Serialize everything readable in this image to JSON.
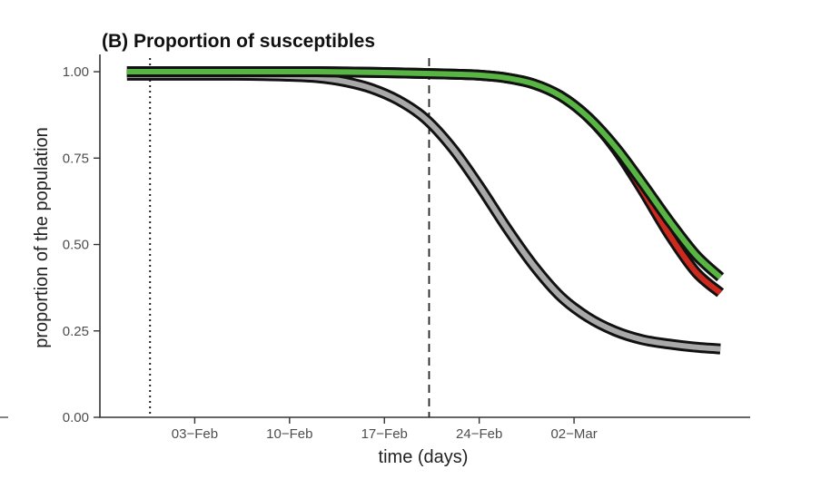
{
  "chart_data": {
    "type": "line",
    "title": "(B) Proportion of susceptibles",
    "xlabel": "time (days)",
    "ylabel": "proportion of the population",
    "x_day_range": [
      -4,
      44
    ],
    "xlim": [
      -4,
      44
    ],
    "ylim": [
      0,
      1.05
    ],
    "y_ticks": [
      {
        "value": 0.0,
        "label": "0.00"
      },
      {
        "value": 0.25,
        "label": "0.25"
      },
      {
        "value": 0.5,
        "label": "0.50"
      },
      {
        "value": 0.75,
        "label": "0.75"
      },
      {
        "value": 1.0,
        "label": "1.00"
      }
    ],
    "x_ticks": [
      {
        "day": 3,
        "label": "03−Feb"
      },
      {
        "day": 10,
        "label": "10−Feb"
      },
      {
        "day": 17,
        "label": "17−Feb"
      },
      {
        "day": 24,
        "label": "24−Feb"
      },
      {
        "day": 31,
        "label": "02−Mar"
      }
    ],
    "vlines": [
      {
        "name": "dotted-reference-line",
        "day": -0.3,
        "style": "dotted"
      },
      {
        "name": "dashed-reference-line",
        "day": 20.3,
        "style": "dashed"
      }
    ],
    "series": [
      {
        "name": "grey",
        "color": "#a9a9a9",
        "x": [
          -2,
          0,
          2,
          4,
          6,
          8,
          10,
          12,
          14,
          16,
          18,
          20,
          22,
          24,
          26,
          28,
          30,
          32,
          34,
          36,
          38,
          40,
          41.8
        ],
        "y": [
          0.99,
          0.99,
          0.99,
          0.99,
          0.99,
          0.989,
          0.987,
          0.983,
          0.972,
          0.952,
          0.918,
          0.865,
          0.78,
          0.67,
          0.55,
          0.44,
          0.35,
          0.29,
          0.25,
          0.225,
          0.212,
          0.203,
          0.198
        ]
      },
      {
        "name": "red",
        "color": "#cc2a1e",
        "x": [
          -2,
          0,
          4,
          8,
          12,
          16,
          20,
          22,
          24,
          26,
          28,
          30,
          32,
          34,
          36,
          38,
          40,
          41.8
        ],
        "y": [
          1.0,
          1.0,
          1.0,
          1.0,
          1.0,
          0.998,
          0.995,
          0.993,
          0.99,
          0.982,
          0.965,
          0.93,
          0.87,
          0.78,
          0.66,
          0.53,
          0.42,
          0.36
        ]
      },
      {
        "name": "green",
        "color": "#58b544",
        "x": [
          -2,
          0,
          4,
          8,
          12,
          16,
          20,
          22,
          24,
          26,
          28,
          30,
          32,
          34,
          36,
          38,
          40,
          41.8
        ],
        "y": [
          1.0,
          1.0,
          1.0,
          1.0,
          1.0,
          0.998,
          0.995,
          0.993,
          0.99,
          0.982,
          0.965,
          0.93,
          0.87,
          0.785,
          0.68,
          0.57,
          0.47,
          0.405
        ]
      }
    ],
    "grid": false
  }
}
